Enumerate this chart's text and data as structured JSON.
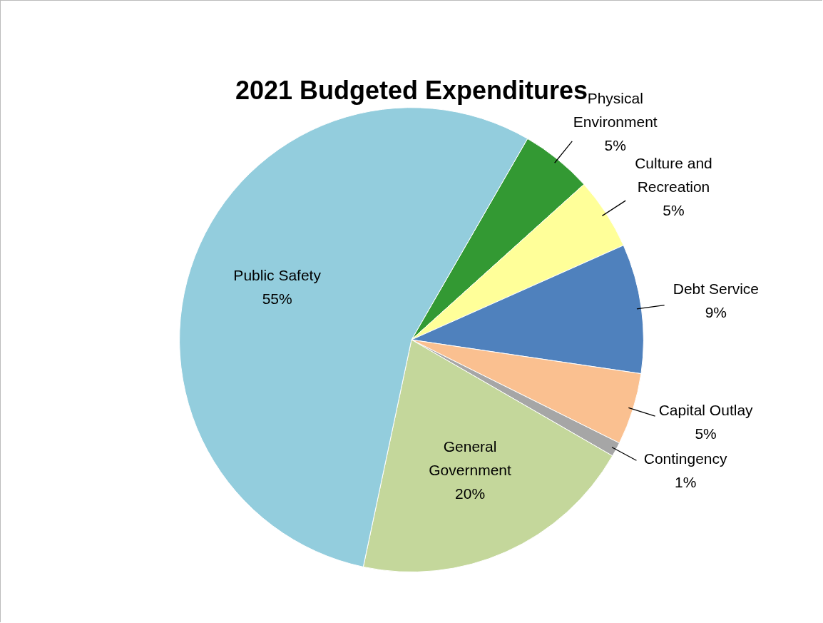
{
  "chart_data": {
    "type": "pie",
    "title": "2021 Budgeted Expenditures",
    "categories": [
      "Physical Environment",
      "Culture and Recreation",
      "Debt Service",
      "Capital Outlay",
      "Contingency",
      "General Government",
      "Public Safety"
    ],
    "values": [
      5,
      5,
      9,
      5,
      1,
      20,
      55
    ],
    "value_labels": [
      "5%",
      "5%",
      "9%",
      "5%",
      "1%",
      "20%",
      "55%"
    ],
    "colors": [
      "#339933",
      "#ffff99",
      "#4f81bd",
      "#fac090",
      "#a6a6a6",
      "#c4d79b",
      "#93cddd"
    ],
    "legend": false
  }
}
